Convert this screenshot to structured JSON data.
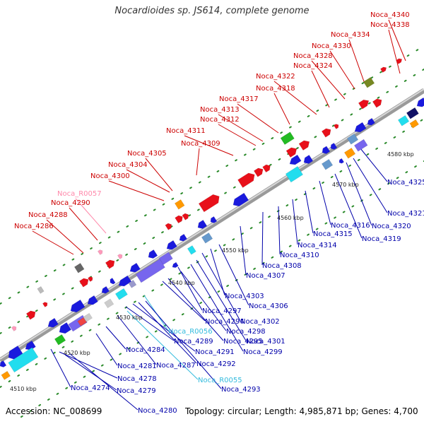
{
  "title": "Nocardioides sp. JS614, complete genome",
  "footer": {
    "accession": "Accession: NC_008699",
    "topology": "Topology: circular; Length: 4,985,871 bp; Genes: 4,700"
  },
  "colors": {
    "forward_label": "#cc0000",
    "reverse_label": "#0000aa",
    "rna_label_pink": "#ff88aa",
    "rna_label_cyan": "#33bbdd",
    "backbone": "#777777"
  },
  "scale_labels": [
    "4510 kbp",
    "4520 kbp",
    "4530 kbp",
    "4540 kbp",
    "4550 kbp",
    "4560 kbp",
    "4570 kbp",
    "4580 kbp"
  ],
  "forward_labels": [
    {
      "text": "Noca_4340",
      "color": "red"
    },
    {
      "text": "Noca_4338",
      "color": "red"
    },
    {
      "text": "Noca_4334",
      "color": "red"
    },
    {
      "text": "Noca_4330",
      "color": "red"
    },
    {
      "text": "Noca_4328",
      "color": "red"
    },
    {
      "text": "Noca_4324",
      "color": "red"
    },
    {
      "text": "Noca_4322",
      "color": "red"
    },
    {
      "text": "Noca_4318",
      "color": "red"
    },
    {
      "text": "Noca_4317",
      "color": "red"
    },
    {
      "text": "Noca_4313",
      "color": "red"
    },
    {
      "text": "Noca_4312",
      "color": "red"
    },
    {
      "text": "Noca_4311",
      "color": "red"
    },
    {
      "text": "Noca_4309",
      "color": "red"
    },
    {
      "text": "Noca_4305",
      "color": "red"
    },
    {
      "text": "Noca_4304",
      "color": "red"
    },
    {
      "text": "Noca_4300",
      "color": "red"
    },
    {
      "text": "Noca_R0057",
      "color": "pink"
    },
    {
      "text": "Noca_4290",
      "color": "red"
    },
    {
      "text": "Noca_4288",
      "color": "red"
    },
    {
      "text": "Noca_4286",
      "color": "red"
    }
  ],
  "reverse_labels": [
    {
      "text": "Noca_4325",
      "color": "blue"
    },
    {
      "text": "Noca_4321",
      "color": "blue"
    },
    {
      "text": "Noca_4320",
      "color": "blue"
    },
    {
      "text": "Noca_4319",
      "color": "blue"
    },
    {
      "text": "Noca_4316",
      "color": "blue"
    },
    {
      "text": "Noca_4315",
      "color": "blue"
    },
    {
      "text": "Noca_4314",
      "color": "blue"
    },
    {
      "text": "Noca_4310",
      "color": "blue"
    },
    {
      "text": "Noca_4308",
      "color": "blue"
    },
    {
      "text": "Noca_4307",
      "color": "blue"
    },
    {
      "text": "Noca_4306",
      "color": "blue"
    },
    {
      "text": "Noca_4303",
      "color": "blue"
    },
    {
      "text": "Noca_4302",
      "color": "blue"
    },
    {
      "text": "Noca_4301",
      "color": "blue"
    },
    {
      "text": "Noca_4299",
      "color": "blue"
    },
    {
      "text": "Noca_4298",
      "color": "blue"
    },
    {
      "text": "Noca_4297",
      "color": "blue"
    },
    {
      "text": "Noca_4295",
      "color": "blue"
    },
    {
      "text": "Noca_4294",
      "color": "blue"
    },
    {
      "text": "Noca_R0056",
      "color": "cyan"
    },
    {
      "text": "Noca_4293",
      "color": "blue"
    },
    {
      "text": "Noca_4292",
      "color": "blue"
    },
    {
      "text": "Noca_4291",
      "color": "blue"
    },
    {
      "text": "Noca_4289",
      "color": "blue"
    },
    {
      "text": "Noca_R0055",
      "color": "cyan"
    },
    {
      "text": "Noca_4287",
      "color": "blue"
    },
    {
      "text": "Noca_4284",
      "color": "blue"
    },
    {
      "text": "Noca_4281",
      "color": "blue"
    },
    {
      "text": "Noca_4280",
      "color": "blue"
    },
    {
      "text": "Noca_4279",
      "color": "blue"
    },
    {
      "text": "Noca_4278",
      "color": "blue"
    },
    {
      "text": "Noca_4274",
      "color": "blue"
    }
  ]
}
